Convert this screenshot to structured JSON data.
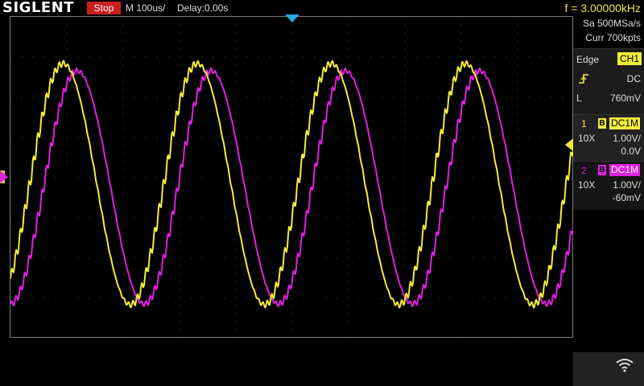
{
  "header": {
    "brand": "SIGLENT",
    "run_state": "Stop",
    "timebase": "M 100us/",
    "delay": "Delay:0.00s",
    "frequency": "f = 3.00000kHz"
  },
  "acquisition": {
    "sample_rate": "Sa 500MSa/s",
    "memory_depth": "Curr 700kpts"
  },
  "trigger": {
    "type": "Edge",
    "source": "CH1",
    "slope_icon": "rising-edge-icon",
    "coupling": "DC",
    "level_label": "L",
    "level": "760mV"
  },
  "channels": [
    {
      "num": "1",
      "bw_badge": "B",
      "coupling": "DC1M",
      "probe": "10X",
      "scale": "1.00V/",
      "offset": "0.0V",
      "color": "#f2ec3c"
    },
    {
      "num": "2",
      "bw_badge": "B",
      "coupling": "DC1M",
      "probe": "10X",
      "scale": "1.00V/",
      "offset": "-60mV",
      "color": "#e020e0"
    }
  ],
  "colors": {
    "ch1": "#f2ec3c",
    "ch2": "#e020e0",
    "trigger_marker": "#2aa8e0",
    "stop_badge": "#c81e1e"
  },
  "status": {
    "wifi_icon": "wifi-icon"
  }
}
